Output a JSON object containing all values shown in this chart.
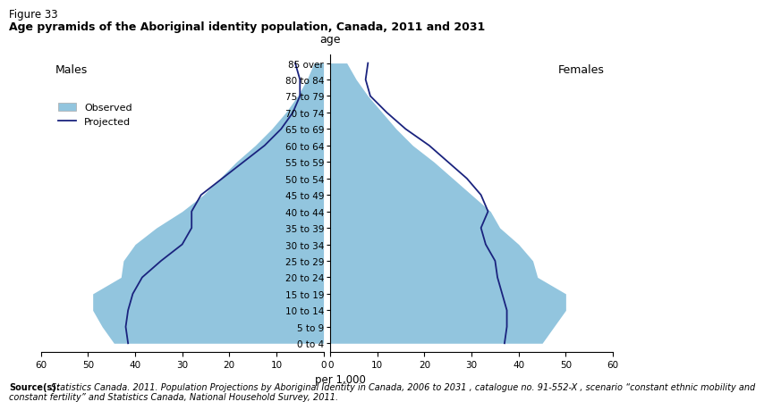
{
  "figure_label": "Figure 33",
  "title": "Age pyramids of the Aboriginal identity population, Canada, 2011 and 2031",
  "age_groups": [
    "0 to 4",
    "5 to 9",
    "10 to 14",
    "15 to 19",
    "20 to 24",
    "25 to 29",
    "30 to 34",
    "35 to 39",
    "40 to 44",
    "45 to 49",
    "50 to 54",
    "55 to 59",
    "60 to 64",
    "65 to 69",
    "70 to 74",
    "75 to 79",
    "80 to 84",
    "85 over"
  ],
  "males_observed": [
    44.5,
    47.0,
    49.0,
    49.0,
    43.0,
    42.5,
    40.0,
    35.5,
    30.0,
    25.5,
    22.0,
    18.5,
    14.5,
    11.0,
    8.0,
    5.5,
    3.5,
    2.0
  ],
  "males_projected": [
    41.5,
    42.0,
    41.5,
    40.5,
    38.5,
    34.5,
    30.0,
    28.0,
    28.0,
    26.0,
    21.5,
    17.0,
    12.5,
    9.0,
    6.5,
    5.0,
    5.0,
    6.0
  ],
  "females_observed": [
    45.0,
    47.5,
    50.0,
    50.0,
    44.0,
    43.0,
    40.0,
    36.0,
    34.0,
    30.0,
    26.0,
    22.0,
    17.5,
    14.0,
    11.0,
    8.0,
    5.5,
    3.5
  ],
  "females_projected": [
    37.0,
    37.5,
    37.5,
    36.5,
    35.5,
    35.0,
    33.0,
    32.0,
    33.5,
    32.0,
    29.0,
    25.0,
    21.0,
    16.0,
    12.0,
    8.5,
    7.5,
    8.0
  ],
  "xlim": 60,
  "xlabel": "per 1,000",
  "ylabel": "age",
  "observed_color": "#92c5de",
  "projected_color": "#1a237e",
  "background_color": "#ffffff",
  "source_bold": "Source(s):",
  "source_italic_line1": " Statistics Canada. 2011. ⁣Population Projections by Aboriginal Identity in Canada, 2006 to 2031⁣ , catalogue no. 91-552-X , scenario “constant ethnic mobility and",
  "source_italic_line2": "constant fertility” and Statistics Canada, National Household Survey, 2011."
}
